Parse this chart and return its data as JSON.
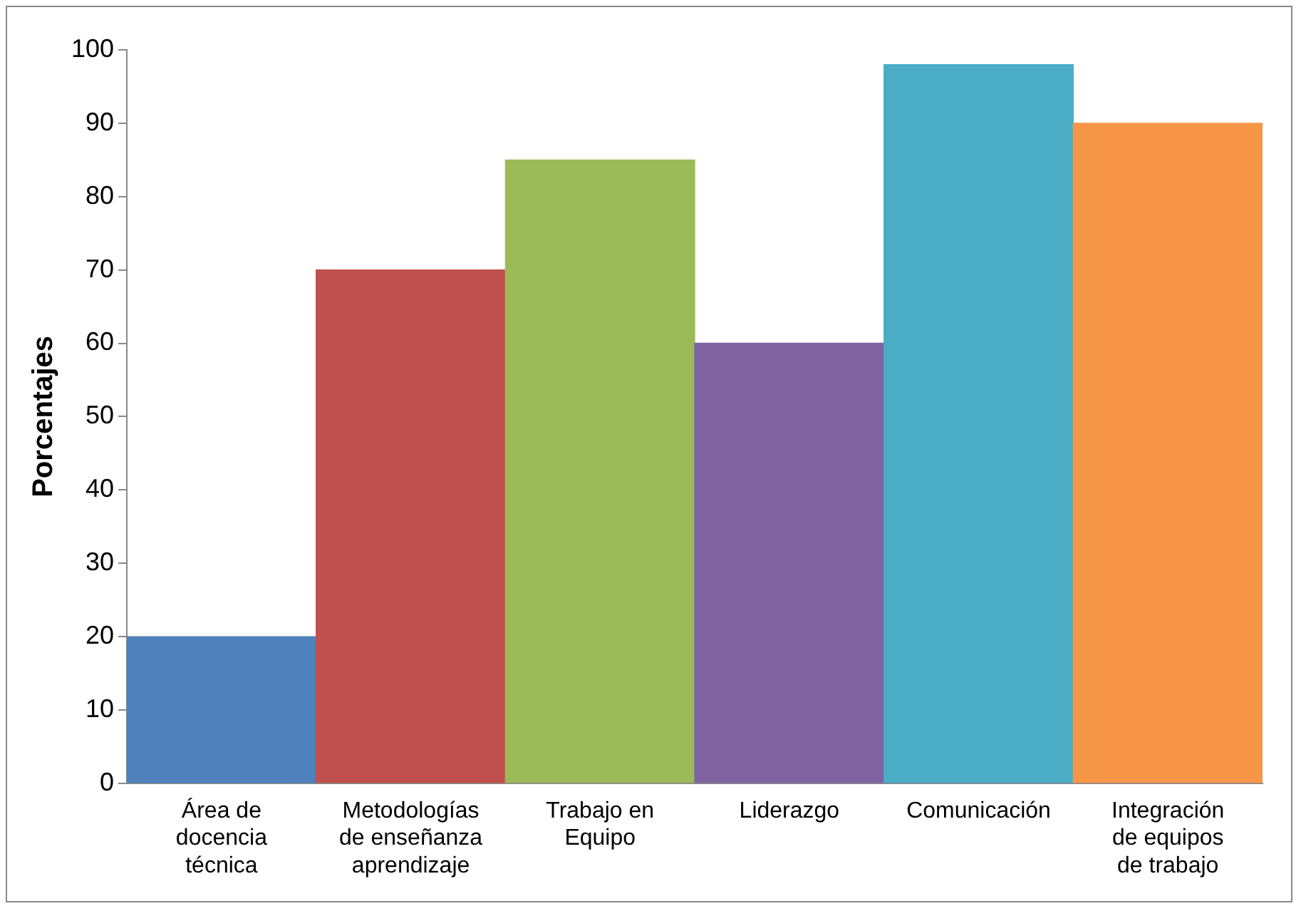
{
  "chart_data": {
    "type": "bar",
    "ylabel": "Porcentajes",
    "categories": [
      "Área de docencia técnica",
      "Metodologías de enseñanza aprendizaje",
      "Trabajo en Equipo",
      "Liderazgo",
      "Comunicación",
      "Integración de equipos de trabajo"
    ],
    "values": [
      20,
      70,
      85,
      60,
      98,
      90
    ],
    "colors": [
      "#4f81bd",
      "#c0504d",
      "#9bbb59",
      "#8064a2",
      "#4bacc6",
      "#f79646"
    ],
    "ylim": [
      0,
      100
    ],
    "yticks": [
      0,
      10,
      20,
      30,
      40,
      50,
      60,
      70,
      80,
      90,
      100
    ],
    "grid": false,
    "legend": false
  }
}
